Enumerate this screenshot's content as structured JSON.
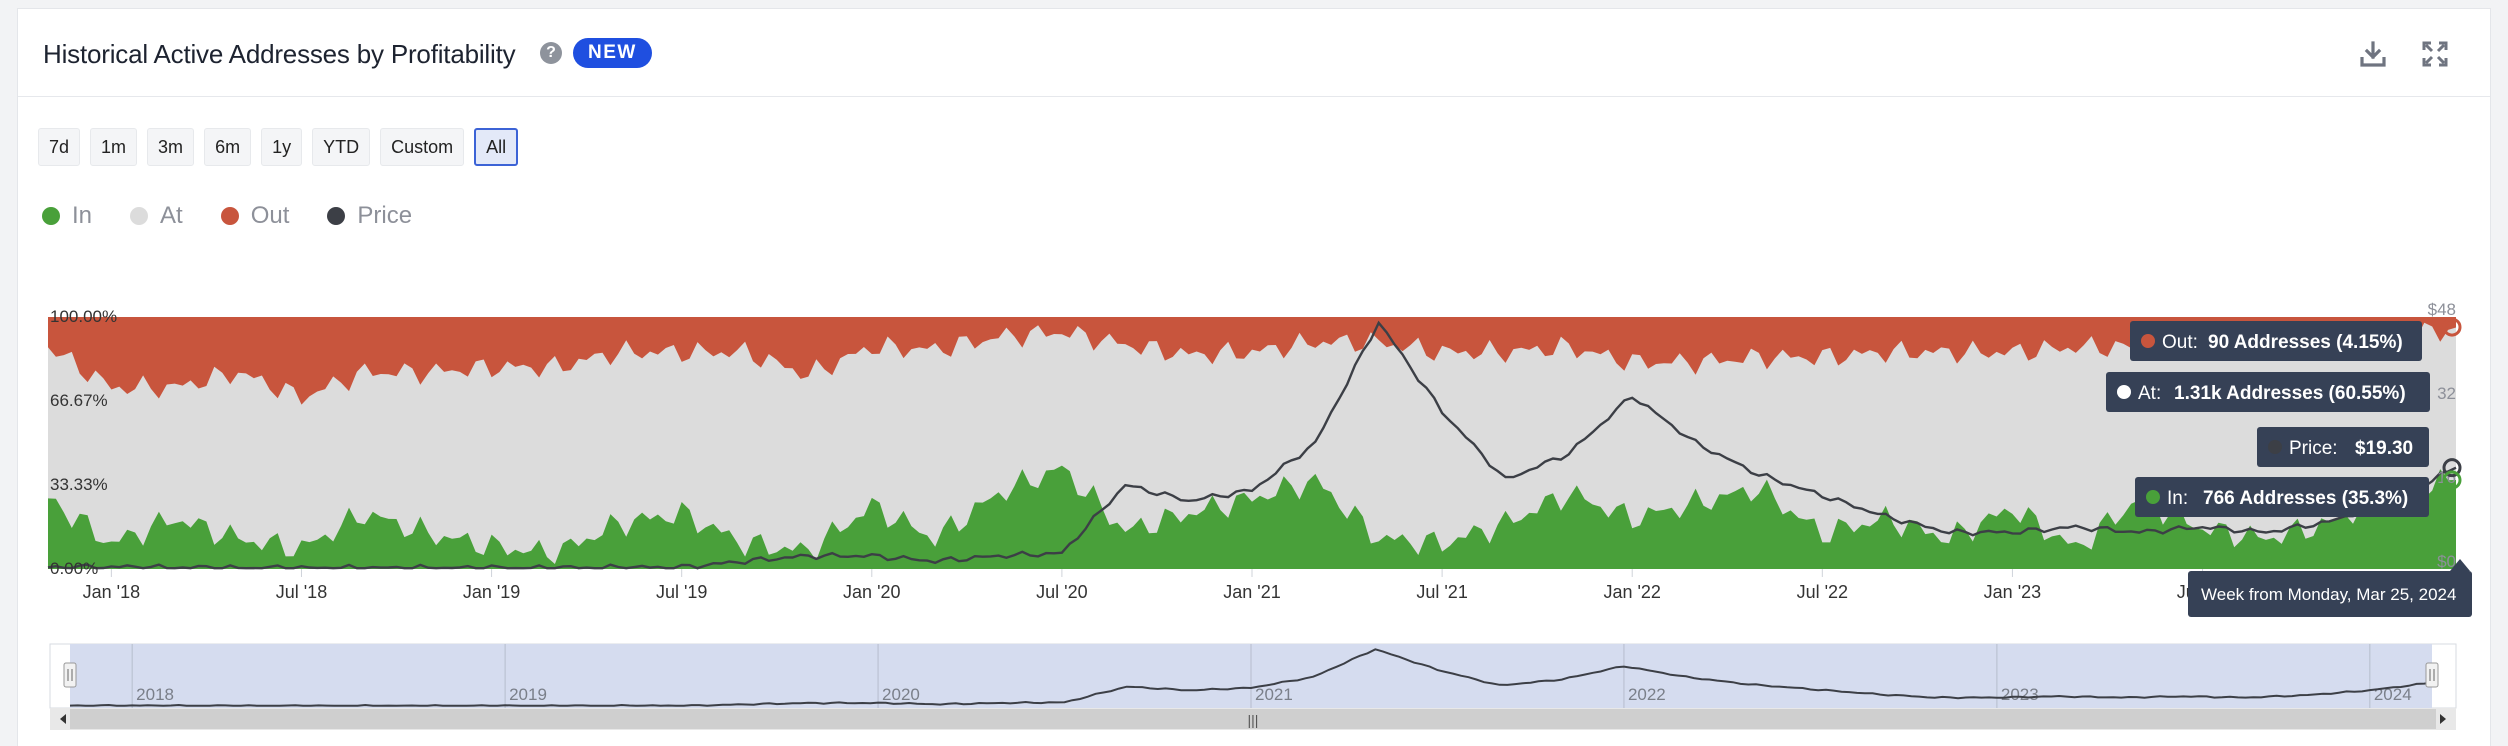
{
  "header": {
    "title": "Historical Active Addresses by Profitability",
    "help": "?",
    "badge": "NEW"
  },
  "range_buttons": [
    {
      "label": "7d",
      "active": false
    },
    {
      "label": "1m",
      "active": false
    },
    {
      "label": "3m",
      "active": false
    },
    {
      "label": "6m",
      "active": false
    },
    {
      "label": "1y",
      "active": false
    },
    {
      "label": "YTD",
      "active": false
    },
    {
      "label": "Custom",
      "active": false
    },
    {
      "label": "All",
      "active": true
    }
  ],
  "legend": [
    {
      "label": "In",
      "color": "#49a03a"
    },
    {
      "label": "At",
      "color": "#dcdcdc"
    },
    {
      "label": "Out",
      "color": "#c8553d"
    },
    {
      "label": "Price",
      "color": "#3c3f46"
    }
  ],
  "tooltip": {
    "out_label": "Out:",
    "out_value": "90 Addresses (4.15%)",
    "at_label": "At:",
    "at_value": "1.31k Addresses (60.55%)",
    "price_label": "Price:",
    "price_value": "$19.30",
    "in_label": "In:",
    "in_value": "766 Addresses (35.3%)",
    "date_label": "Week from Monday, Mar 25, 2024"
  },
  "right_axis_partial": [
    "$48",
    "32",
    "16",
    "$0"
  ],
  "navigator": {
    "year_labels": [
      "2018",
      "2019",
      "2020",
      "2021",
      "2022",
      "2023",
      "2024"
    ],
    "scroll_grip": "|||"
  },
  "colors": {
    "in": "#49a03a",
    "at": "#dcdcdc",
    "out": "#c8553d",
    "price": "#3c3f46",
    "tooltip_bg": "#364156"
  },
  "chart_data": {
    "type": "area",
    "stacked": "percent",
    "x_tick_labels": [
      "Jan '18",
      "Jul '18",
      "Jan '19",
      "Jul '19",
      "Jan '20",
      "Jul '20",
      "Jan '21",
      "Jul '21",
      "Jan '22",
      "Jul '22",
      "Jan '23",
      "Jul '23"
    ],
    "y_tick_labels": [
      "100.00%",
      "66.67%",
      "33.33%",
      "0.00%"
    ],
    "ylim_left": [
      0,
      100
    ],
    "ylim_right": [
      0,
      48
    ],
    "x_range": [
      "2017-11",
      "2024-03"
    ],
    "x": [
      "2017-11",
      "2018-01",
      "2018-03",
      "2018-05",
      "2018-07",
      "2018-09",
      "2018-11",
      "2019-01",
      "2019-03",
      "2019-05",
      "2019-07",
      "2019-09",
      "2019-11",
      "2020-01",
      "2020-03",
      "2020-05",
      "2020-07",
      "2020-09",
      "2020-11",
      "2021-01",
      "2021-03",
      "2021-05",
      "2021-07",
      "2021-09",
      "2021-11",
      "2022-01",
      "2022-03",
      "2022-05",
      "2022-07",
      "2022-09",
      "2022-11",
      "2023-01",
      "2023-03",
      "2023-05",
      "2023-07",
      "2023-09",
      "2023-11",
      "2024-01",
      "2024-03"
    ],
    "series": [
      {
        "name": "In",
        "type": "area",
        "axis": "left",
        "values": [
          28,
          10,
          20,
          12,
          8,
          22,
          14,
          9,
          6,
          18,
          22,
          10,
          7,
          25,
          12,
          30,
          40,
          15,
          22,
          28,
          35,
          12,
          10,
          18,
          30,
          20,
          26,
          32,
          14,
          20,
          12,
          24,
          8,
          28,
          16,
          12,
          18,
          30,
          35.3
        ]
      },
      {
        "name": "At",
        "type": "area",
        "axis": "left",
        "values": [
          60,
          62,
          52,
          66,
          60,
          56,
          64,
          71,
          74,
          68,
          64,
          76,
          70,
          63,
          75,
          62,
          54,
          74,
          63,
          58,
          55,
          78,
          76,
          68,
          58,
          62,
          56,
          52,
          70,
          66,
          74,
          62,
          80,
          60,
          70,
          76,
          70,
          62,
          60.55
        ]
      },
      {
        "name": "Out",
        "type": "area",
        "axis": "left",
        "values": [
          12,
          28,
          28,
          22,
          32,
          22,
          22,
          20,
          20,
          14,
          14,
          14,
          23,
          12,
          13,
          8,
          6,
          11,
          15,
          14,
          10,
          10,
          14,
          14,
          12,
          18,
          18,
          16,
          16,
          14,
          14,
          14,
          12,
          12,
          14,
          12,
          12,
          8,
          4.15
        ]
      },
      {
        "name": "Price",
        "type": "line",
        "axis": "right",
        "values": [
          0.3,
          0.4,
          0.3,
          0.2,
          0.2,
          0.2,
          0.2,
          0.2,
          0.2,
          0.3,
          0.3,
          1.5,
          2.5,
          2.5,
          1.5,
          2.5,
          3.0,
          16,
          13,
          15,
          24,
          47,
          30,
          17,
          22,
          33,
          24,
          18,
          14,
          10,
          7,
          7,
          8,
          7,
          8,
          7,
          9,
          13,
          19.3
        ]
      }
    ]
  }
}
